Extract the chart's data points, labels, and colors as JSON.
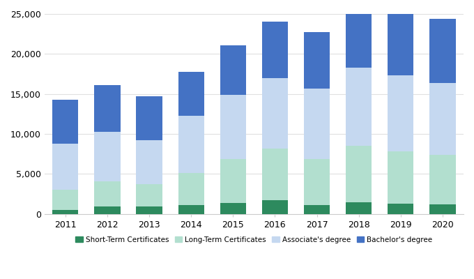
{
  "years": [
    2011,
    2012,
    2013,
    2014,
    2015,
    2016,
    2017,
    2018,
    2019,
    2020
  ],
  "short_term": [
    500,
    900,
    900,
    1100,
    1400,
    1700,
    1100,
    1500,
    1300,
    1200
  ],
  "long_term": [
    2500,
    3200,
    2800,
    4000,
    5500,
    6500,
    5800,
    7000,
    6500,
    6200
  ],
  "associates": [
    5800,
    6200,
    5500,
    7200,
    8000,
    8800,
    8800,
    9800,
    9500,
    9000
  ],
  "bachelors": [
    5500,
    5800,
    5500,
    5500,
    6200,
    7000,
    7000,
    8000,
    8400,
    8000
  ],
  "colors": {
    "short_term": "#2d8a5e",
    "long_term": "#b2dfcf",
    "associates": "#c5d8f0",
    "bachelors": "#4472c4"
  },
  "legend_labels": [
    "Short-Term Certificates",
    "Long-Term Certificates",
    "Associate's degree",
    "Bachelor's degree"
  ],
  "ylim": [
    0,
    25000
  ],
  "yticks": [
    0,
    5000,
    10000,
    15000,
    20000,
    25000
  ],
  "ytick_labels": [
    "0",
    "5,000",
    "10,000",
    "15,000",
    "20,000",
    "25,000"
  ],
  "background_color": "#ffffff",
  "grid_color": "#e0e0e0"
}
